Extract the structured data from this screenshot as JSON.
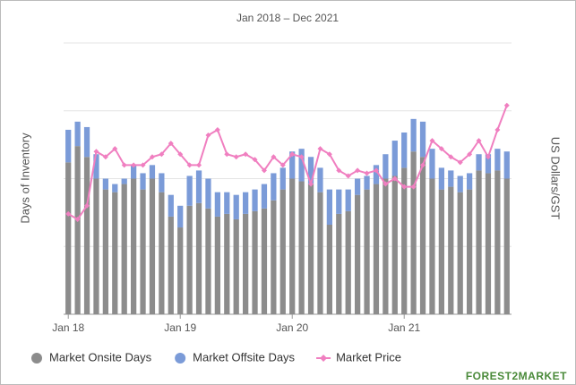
{
  "chart_data": {
    "type": "bar",
    "title": "Jan 2018 – Dec 2021",
    "y_label": "Days of Inventory",
    "y2_label": "US Dollars/GST",
    "logo": "FOREST2MARKET",
    "categories": [
      "Jan 18",
      null,
      null,
      null,
      null,
      null,
      null,
      null,
      null,
      null,
      null,
      null,
      "Jan 19",
      null,
      null,
      null,
      null,
      null,
      null,
      null,
      null,
      null,
      null,
      null,
      "Jan 20",
      null,
      null,
      null,
      null,
      null,
      null,
      null,
      null,
      null,
      null,
      null,
      "Jan 21",
      null,
      null,
      null,
      null,
      null,
      null,
      null,
      null,
      null,
      null,
      null
    ],
    "ylim": [
      0,
      100
    ],
    "yticks": [
      0,
      25,
      50,
      75,
      100
    ],
    "grid": true,
    "y2lim": [
      0,
      100
    ],
    "legend": "bottom",
    "series": [
      {
        "name": "Market Onsite Days",
        "color": "#8c8c8c",
        "kind": "bar",
        "values": [
          56,
          62,
          58,
          50,
          46,
          45,
          48,
          50,
          46,
          50,
          45,
          36,
          32,
          40,
          41,
          39,
          36,
          37,
          35,
          37,
          38,
          39,
          42,
          46,
          50,
          49,
          48,
          45,
          33,
          37,
          38,
          44,
          46,
          48,
          50,
          51,
          54,
          60,
          58,
          50,
          46,
          47,
          45,
          46,
          53,
          52,
          53,
          50
        ]
      },
      {
        "name": "Market Offsite Days",
        "color": "#7b9bd8",
        "kind": "bar",
        "values": [
          12,
          9,
          11,
          9,
          4,
          3,
          2,
          5,
          6,
          5,
          7,
          8,
          8,
          11,
          12,
          11,
          9,
          8,
          9,
          8,
          8,
          9,
          10,
          8,
          10,
          12,
          10,
          9,
          13,
          9,
          8,
          6,
          5,
          7,
          9,
          13,
          13,
          12,
          13,
          11,
          8,
          6,
          6,
          6,
          6,
          7,
          8,
          10
        ]
      },
      {
        "name": "Market Price",
        "color": "#f07fc0",
        "kind": "line",
        "axis": "y2",
        "values": [
          37,
          35,
          40,
          60,
          58,
          61,
          55,
          55,
          55,
          58,
          59,
          63,
          59,
          55,
          55,
          66,
          68,
          59,
          58,
          59,
          57,
          53,
          58,
          55,
          59,
          58,
          48,
          61,
          59,
          53,
          51,
          53,
          52,
          53,
          48,
          50,
          47,
          47,
          55,
          64,
          61,
          58,
          56,
          59,
          64,
          58,
          68,
          77
        ]
      }
    ]
  }
}
